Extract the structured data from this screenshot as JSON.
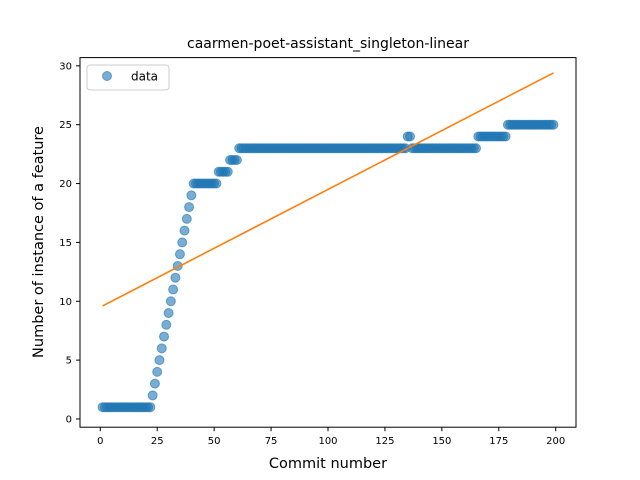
{
  "chart_data": {
    "type": "scatter",
    "title": "caarmen-poet-assistant_singleton-linear",
    "xlabel": "Commit number",
    "ylabel": "Number of instance of a feature",
    "xlim": [
      -8.9,
      208.9
    ],
    "ylim": [
      -0.7,
      30.7
    ],
    "xticks": [
      0,
      25,
      50,
      75,
      100,
      125,
      150,
      175,
      200
    ],
    "yticks": [
      0,
      5,
      10,
      15,
      20,
      25,
      30
    ],
    "grid": false,
    "legend": {
      "position": "upper-left",
      "entries": [
        "data"
      ]
    },
    "colors": {
      "data": "#1f77b4",
      "fit": "#ff7f0e"
    },
    "series": [
      {
        "name": "data",
        "kind": "scatter",
        "segments": [
          {
            "x_from": 1,
            "x_to": 22,
            "y": 1
          },
          {
            "x": 23,
            "y": 2
          },
          {
            "x": 24,
            "y": 3
          },
          {
            "x": 25,
            "y": 4
          },
          {
            "x": 26,
            "y": 5
          },
          {
            "x": 27,
            "y": 6
          },
          {
            "x": 28,
            "y": 7
          },
          {
            "x": 29,
            "y": 8
          },
          {
            "x": 30,
            "y": 9
          },
          {
            "x": 31,
            "y": 10
          },
          {
            "x": 32,
            "y": 11
          },
          {
            "x": 33,
            "y": 12
          },
          {
            "x": 34,
            "y": 13
          },
          {
            "x": 35,
            "y": 14
          },
          {
            "x": 36,
            "y": 15
          },
          {
            "x": 37,
            "y": 16
          },
          {
            "x": 38,
            "y": 17
          },
          {
            "x": 39,
            "y": 18
          },
          {
            "x": 40,
            "y": 19
          },
          {
            "x_from": 41,
            "x_to": 51,
            "y": 20
          },
          {
            "x_from": 52,
            "x_to": 56,
            "y": 21
          },
          {
            "x_from": 57,
            "x_to": 60,
            "y": 22
          },
          {
            "x_from": 61,
            "x_to": 134,
            "y": 23
          },
          {
            "x_from": 135,
            "x_to": 136,
            "y": 24
          },
          {
            "x_from": 137,
            "x_to": 165,
            "y": 23
          },
          {
            "x_from": 166,
            "x_to": 178,
            "y": 24
          },
          {
            "x_from": 179,
            "x_to": 199,
            "y": 25
          }
        ]
      },
      {
        "kind": "line",
        "x": [
          1,
          199
        ],
        "y": [
          9.6,
          29.4
        ]
      }
    ]
  }
}
